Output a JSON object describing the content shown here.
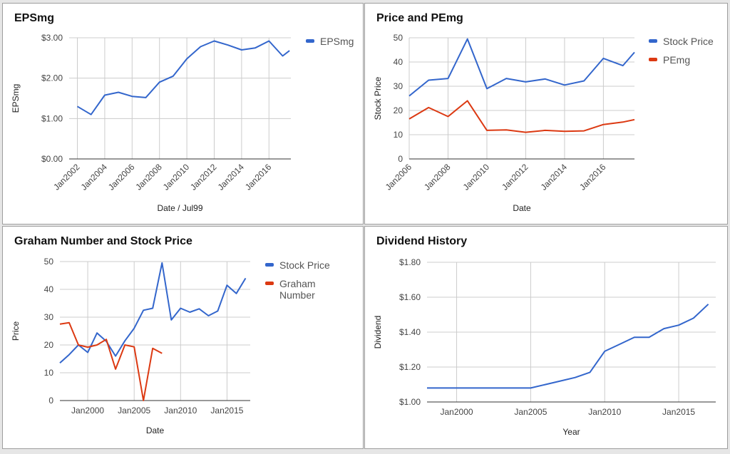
{
  "chart_data": [
    {
      "id": "p1",
      "type": "line",
      "title": "EPSmg",
      "xlabel": "Date / Jul99",
      "ylabel": "EPSmg",
      "x_tick_labels": [
        "Jan2002",
        "Jan2004",
        "Jan2006",
        "Jan2008",
        "Jan2010",
        "Jan2012",
        "Jan2014",
        "Jan2016"
      ],
      "y_tick_labels": [
        "$0.00",
        "$1.00",
        "$2.00",
        "$3.00"
      ],
      "y_ticks": [
        0,
        1,
        2,
        3
      ],
      "xlim": [
        2001.4,
        2017.6
      ],
      "ylim": [
        0,
        3
      ],
      "x_tick_values": [
        2002,
        2004,
        2006,
        2008,
        2010,
        2012,
        2014,
        2016
      ],
      "tick_label_rotation": -45,
      "legend": "right",
      "grid": true,
      "series": [
        {
          "name": "EPSmg",
          "color": "#3366cc",
          "x": [
            2002,
            2003,
            2004,
            2005,
            2006,
            2007,
            2008,
            2009,
            2010,
            2011,
            2012,
            2013,
            2014,
            2015,
            2016,
            2017,
            2017.5
          ],
          "y": [
            1.3,
            1.1,
            1.58,
            1.65,
            1.55,
            1.52,
            1.9,
            2.05,
            2.48,
            2.78,
            2.92,
            2.82,
            2.7,
            2.75,
            2.92,
            2.55,
            2.68
          ]
        }
      ]
    },
    {
      "id": "p2",
      "type": "line",
      "title": "Price and PEmg",
      "xlabel": "Date",
      "ylabel": "Stock Price",
      "x_tick_labels": [
        "Jan2006",
        "Jan2008",
        "Jan2010",
        "Jan2012",
        "Jan2014",
        "Jan2016"
      ],
      "y_tick_labels": [
        "0",
        "10",
        "20",
        "30",
        "40",
        "50"
      ],
      "y_ticks": [
        0,
        10,
        20,
        30,
        40,
        50
      ],
      "xlim": [
        2006,
        2017.6
      ],
      "ylim": [
        0,
        50
      ],
      "x_tick_values": [
        2006,
        2008,
        2010,
        2012,
        2014,
        2016
      ],
      "tick_label_rotation": -45,
      "legend": "right",
      "grid": true,
      "series": [
        {
          "name": "Stock Price",
          "color": "#3366cc",
          "x": [
            2006,
            2007,
            2008,
            2009,
            2010,
            2011,
            2012,
            2013,
            2014,
            2015,
            2016,
            2017,
            2017.6
          ],
          "y": [
            26,
            32.5,
            33.2,
            49.5,
            29,
            33.2,
            31.8,
            33,
            30.5,
            32.2,
            41.5,
            38.5,
            44
          ]
        },
        {
          "name": "PEmg",
          "color": "#dc3912",
          "x": [
            2006,
            2007,
            2008,
            2009,
            2010,
            2011,
            2012,
            2013,
            2014,
            2015,
            2016,
            2017,
            2017.6
          ],
          "y": [
            16.5,
            21.2,
            17.5,
            24,
            11.8,
            12,
            11,
            11.8,
            11.4,
            11.6,
            14.2,
            15.2,
            16.2
          ]
        }
      ]
    },
    {
      "id": "p3",
      "type": "line",
      "title": "Graham Number and Stock Price",
      "xlabel": "Date",
      "ylabel": "Price",
      "x_tick_labels": [
        "Jan2000",
        "Jan2005",
        "Jan2010",
        "Jan2015"
      ],
      "y_tick_labels": [
        "0",
        "10",
        "20",
        "30",
        "40",
        "50"
      ],
      "y_ticks": [
        0,
        10,
        20,
        30,
        40,
        50
      ],
      "xlim": [
        1997,
        2017.5
      ],
      "ylim": [
        0,
        50
      ],
      "x_tick_values": [
        2000,
        2005,
        2010,
        2015
      ],
      "tick_label_rotation": 0,
      "legend": "right",
      "grid": true,
      "series": [
        {
          "name": "Stock Price",
          "color": "#3366cc",
          "x": [
            1997,
            1998,
            1999,
            2000,
            2001,
            2002,
            2003,
            2004,
            2005,
            2006,
            2007,
            2008,
            2009,
            2010,
            2011,
            2012,
            2013,
            2014,
            2015,
            2016,
            2017
          ],
          "y": [
            13.5,
            16.5,
            20,
            17.3,
            24.3,
            21.3,
            16,
            21.5,
            26,
            32.5,
            33.2,
            49.5,
            29,
            33.2,
            31.8,
            33,
            30.5,
            32.2,
            41.5,
            38.5,
            44
          ]
        },
        {
          "name": "Graham Number",
          "color": "#dc3912",
          "x": [
            1997,
            1998,
            1999,
            2000,
            2001,
            2002,
            2003,
            2004,
            2005,
            2006,
            2007,
            2008
          ],
          "y": [
            27.5,
            28,
            20,
            19.2,
            20,
            22,
            11.3,
            20,
            19.3,
            0,
            18.8,
            17
          ]
        }
      ]
    },
    {
      "id": "p4",
      "type": "line",
      "title": "Dividend History",
      "xlabel": "Year",
      "ylabel": "Dividend",
      "x_tick_labels": [
        "Jan2000",
        "Jan2005",
        "Jan2010",
        "Jan2015"
      ],
      "y_tick_labels": [
        "$1.00",
        "$1.20",
        "$1.40",
        "$1.60",
        "$1.80"
      ],
      "y_ticks": [
        1.0,
        1.2,
        1.4,
        1.6,
        1.8
      ],
      "xlim": [
        1998,
        2017.5
      ],
      "ylim": [
        1.0,
        1.8
      ],
      "x_tick_values": [
        2000,
        2005,
        2010,
        2015
      ],
      "tick_label_rotation": 0,
      "legend": "none",
      "grid": true,
      "series": [
        {
          "name": "",
          "color": "#3366cc",
          "x": [
            1998,
            1999,
            2000,
            2001,
            2002,
            2003,
            2004,
            2005,
            2006,
            2007,
            2008,
            2009,
            2010,
            2011,
            2012,
            2013,
            2014,
            2015,
            2016,
            2017
          ],
          "y": [
            1.08,
            1.08,
            1.08,
            1.08,
            1.08,
            1.08,
            1.08,
            1.08,
            1.1,
            1.12,
            1.14,
            1.17,
            1.29,
            1.33,
            1.37,
            1.37,
            1.42,
            1.44,
            1.48,
            1.56
          ]
        }
      ]
    }
  ]
}
